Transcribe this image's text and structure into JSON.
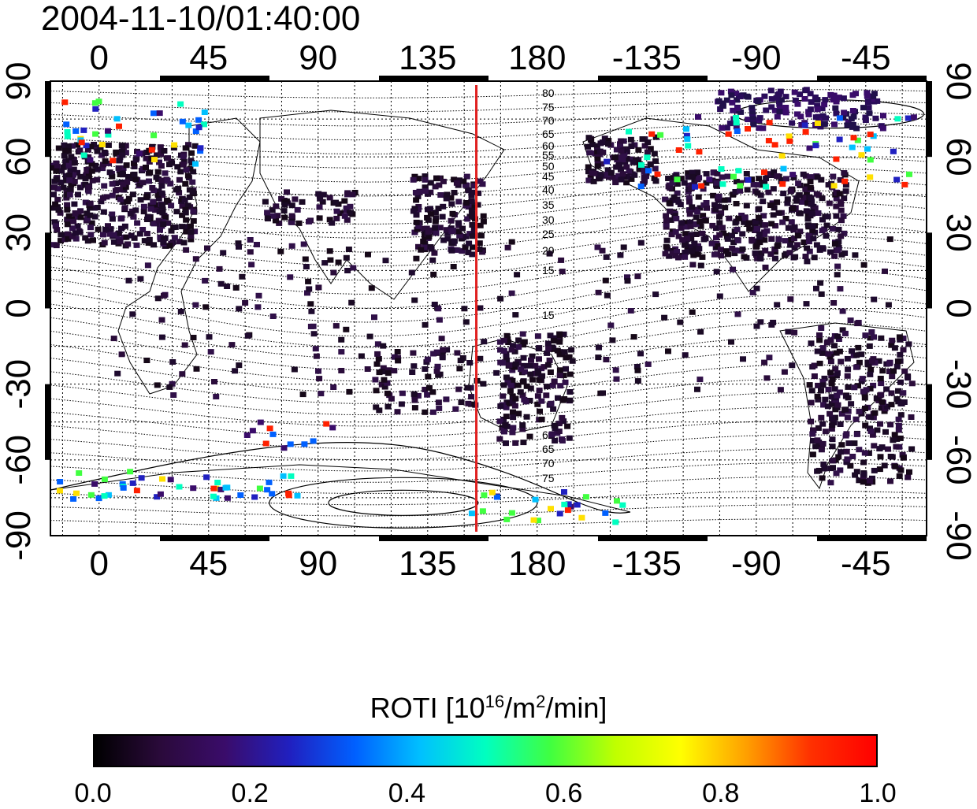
{
  "title": "2004-11-10/01:40:00",
  "map": {
    "lon_ticks": [
      "0",
      "45",
      "90",
      "135",
      "180",
      "-135",
      "-90",
      "-45"
    ],
    "lon_values": [
      0,
      45,
      90,
      135,
      180,
      225,
      270,
      315
    ],
    "lat_ticks_left": [
      "90",
      "60",
      "30",
      "0",
      "-30",
      "-60",
      "-90"
    ],
    "lat_ticks_right": [
      "90",
      "60",
      "30",
      "0",
      "-30",
      "-60",
      "-90"
    ],
    "lat_values": [
      90,
      60,
      30,
      0,
      -30,
      -60,
      -90
    ],
    "lon_range": [
      -20,
      340
    ],
    "lat_range": [
      -90,
      90
    ],
    "meridian_marker": {
      "lon": 155,
      "color": "#e02020"
    },
    "contour_labels_north": [
      "80",
      "75",
      "70",
      "65",
      "60",
      "55",
      "50",
      "45",
      "40",
      "35",
      "30",
      "25",
      "20",
      "15"
    ],
    "contour_labels_south": [
      "15",
      "60",
      "65",
      "70",
      "75"
    ]
  },
  "colorbar": {
    "title_main": "ROTI  [10",
    "title_sup1": "16",
    "title_mid": "/m",
    "title_sup2": "2",
    "title_end": "/min]",
    "ticks": [
      "0.0",
      "0.2",
      "0.4",
      "0.6",
      "0.8",
      "1.0"
    ],
    "range": [
      0.0,
      1.0
    ],
    "colors": [
      "#000000",
      "#2a0a3a",
      "#3a0c6a",
      "#2020c0",
      "#0060ff",
      "#00c0ff",
      "#00ffc0",
      "#40ff40",
      "#c0ff00",
      "#ffff00",
      "#ffa000",
      "#ff3000",
      "#ff0000"
    ]
  }
}
